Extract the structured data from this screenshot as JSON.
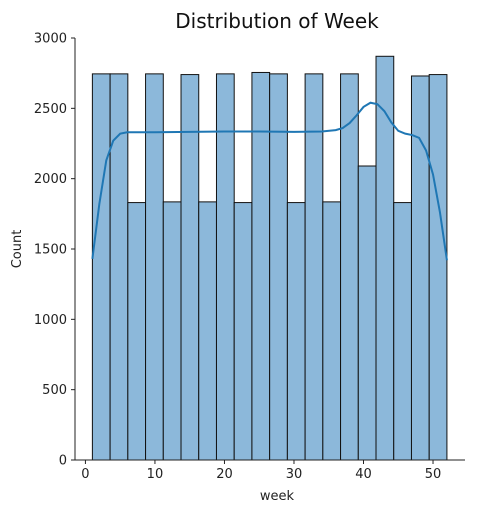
{
  "chart_data": {
    "type": "bar",
    "title": "Distribution of Week",
    "xlabel": "week",
    "ylabel": "Count",
    "xlim": [
      -1.5,
      54.6
    ],
    "ylim": [
      0,
      3000
    ],
    "xticks": [
      0,
      10,
      20,
      30,
      40,
      50
    ],
    "yticks": [
      0,
      500,
      1000,
      1500,
      2000,
      2500,
      3000
    ],
    "bar_color": "#8cb8da",
    "bar_edge_color": "#111111",
    "kde_color": "#1f77b4",
    "bins": [
      {
        "start": 1.0,
        "end": 3.55,
        "count": 2745
      },
      {
        "start": 3.55,
        "end": 6.1,
        "count": 2745
      },
      {
        "start": 6.1,
        "end": 8.65,
        "count": 1830
      },
      {
        "start": 8.65,
        "end": 11.2,
        "count": 2745
      },
      {
        "start": 11.2,
        "end": 13.75,
        "count": 1835
      },
      {
        "start": 13.75,
        "end": 16.3,
        "count": 2740
      },
      {
        "start": 16.3,
        "end": 18.85,
        "count": 1835
      },
      {
        "start": 18.85,
        "end": 21.4,
        "count": 2745
      },
      {
        "start": 21.4,
        "end": 23.95,
        "count": 1830
      },
      {
        "start": 23.95,
        "end": 26.5,
        "count": 2755
      },
      {
        "start": 26.5,
        "end": 29.05,
        "count": 2745
      },
      {
        "start": 29.05,
        "end": 31.6,
        "count": 1830
      },
      {
        "start": 31.6,
        "end": 34.15,
        "count": 2745
      },
      {
        "start": 34.15,
        "end": 36.7,
        "count": 1835
      },
      {
        "start": 36.7,
        "end": 39.25,
        "count": 2745
      },
      {
        "start": 39.25,
        "end": 41.8,
        "count": 2090
      },
      {
        "start": 41.8,
        "end": 44.35,
        "count": 2870
      },
      {
        "start": 44.35,
        "end": 46.9,
        "count": 1830
      },
      {
        "start": 46.9,
        "end": 49.45,
        "count": 2730
      },
      {
        "start": 49.45,
        "end": 52.0,
        "count": 2740
      }
    ],
    "kde": {
      "x": [
        1,
        2,
        3,
        4,
        5,
        6,
        8,
        10,
        15,
        20,
        25,
        30,
        34,
        36,
        37,
        38,
        39,
        40,
        41,
        42,
        43,
        44,
        45,
        46,
        47,
        48,
        49,
        50,
        51,
        52
      ],
      "y": [
        1430,
        1820,
        2130,
        2270,
        2320,
        2330,
        2330,
        2330,
        2333,
        2335,
        2335,
        2333,
        2335,
        2345,
        2360,
        2395,
        2450,
        2510,
        2540,
        2530,
        2480,
        2400,
        2340,
        2320,
        2310,
        2290,
        2200,
        2030,
        1760,
        1420
      ]
    }
  }
}
